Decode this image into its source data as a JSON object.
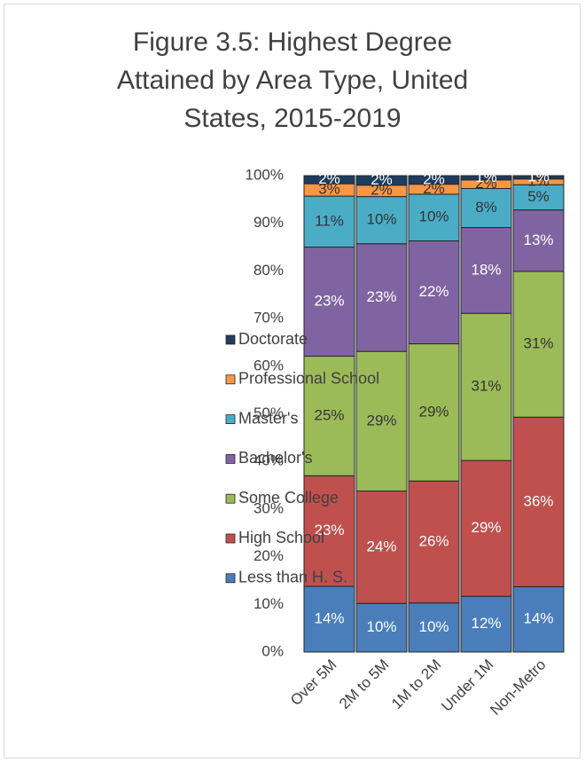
{
  "chart_data": {
    "type": "stacked_bar",
    "title": "Figure 3.5: Highest Degree Attained by Area Type, United States, 2015-2019",
    "categories": [
      "Over 5M",
      "2M to 5M",
      "1M to 2M",
      "Under 1M",
      "Non-Metro"
    ],
    "series": [
      {
        "name": "Less than H. S.",
        "color": "#4a7ebb",
        "label_color": "#ffffff",
        "values": [
          13.8,
          10.2,
          10.3,
          11.7,
          13.7
        ],
        "value_labels": [
          "14%",
          "10%",
          "10%",
          "12%",
          "14%"
        ]
      },
      {
        "name": "High School",
        "color": "#c0504d",
        "label_color": "#ffffff",
        "values": [
          23.2,
          23.6,
          25.6,
          28.5,
          35.6
        ],
        "value_labels": [
          "23%",
          "24%",
          "26%",
          "29%",
          "36%"
        ]
      },
      {
        "name": "Some College",
        "color": "#9bbb59",
        "label_color": "#333333",
        "values": [
          25.1,
          29.3,
          28.8,
          30.9,
          30.6
        ],
        "value_labels": [
          "25%",
          "29%",
          "29%",
          "31%",
          "31%"
        ]
      },
      {
        "name": "Bachelor's",
        "color": "#8064a2",
        "label_color": "#ffffff",
        "values": [
          22.9,
          22.6,
          21.6,
          18.0,
          12.9
        ],
        "value_labels": [
          "23%",
          "23%",
          "22%",
          "18%",
          "13%"
        ]
      },
      {
        "name": "Master's",
        "color": "#4bacc6",
        "label_color": "#333333",
        "values": [
          10.7,
          9.9,
          9.8,
          8.2,
          5.3
        ],
        "value_labels": [
          "11%",
          "10%",
          "10%",
          "8%",
          "5%"
        ]
      },
      {
        "name": "Professional School",
        "color": "#f79646",
        "label_color": "#333333",
        "values": [
          2.6,
          2.4,
          2.1,
          1.8,
          1.2
        ],
        "value_labels": [
          "3%",
          "2%",
          "2%",
          "2%",
          "1%"
        ]
      },
      {
        "name": "Doctorate",
        "color": "#1f3b5e",
        "label_color": "#ffffff",
        "values": [
          1.7,
          2.0,
          1.8,
          0.9,
          0.7
        ],
        "value_labels": [
          "2%",
          "2%",
          "2%",
          "1%",
          "1%"
        ]
      }
    ],
    "ylim": [
      0,
      100
    ],
    "yticks": [
      {
        "value": 0,
        "label": "0%"
      },
      {
        "value": 10,
        "label": "10%"
      },
      {
        "value": 20,
        "label": "20%"
      },
      {
        "value": 30,
        "label": "30%"
      },
      {
        "value": 40,
        "label": "40%"
      },
      {
        "value": 50,
        "label": "50%"
      },
      {
        "value": 60,
        "label": "60%"
      },
      {
        "value": 70,
        "label": "70%"
      },
      {
        "value": 80,
        "label": "80%"
      },
      {
        "value": 90,
        "label": "90%"
      },
      {
        "value": 100,
        "label": "100%"
      }
    ],
    "legend": "left",
    "grid": false
  }
}
